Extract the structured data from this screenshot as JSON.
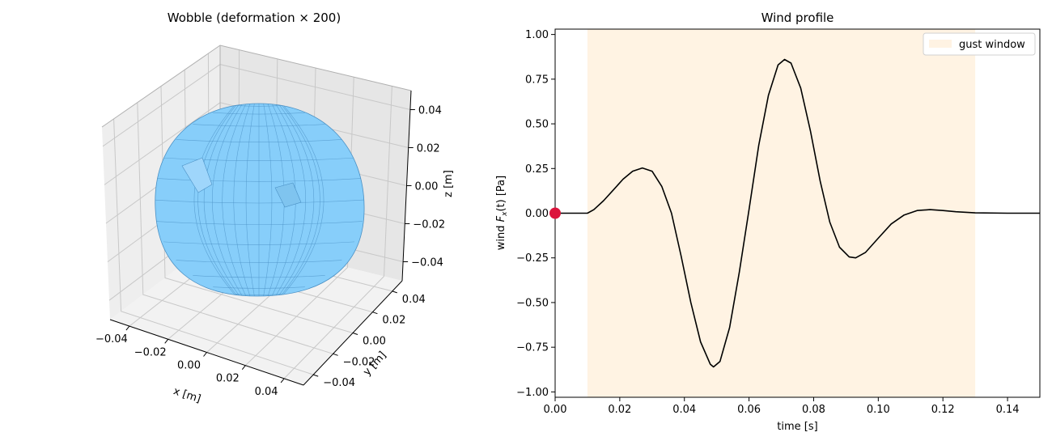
{
  "chart_data": [
    {
      "type": "surface3d",
      "title": "Wobble (deformation × 200)",
      "xlabel": "x [m]",
      "ylabel": "y [m]",
      "zlabel": "z [m]",
      "xticks": [
        "−0.04",
        "−0.02",
        "0.00",
        "0.02",
        "0.04"
      ],
      "yticks": [
        "−0.04",
        "−0.02",
        "0.00",
        "0.02",
        "0.04"
      ],
      "zticks": [
        "−0.04",
        "−0.02",
        "0.00",
        "0.02",
        "0.04"
      ],
      "xlim": [
        -0.05,
        0.05
      ],
      "ylim": [
        -0.05,
        0.05
      ],
      "zlim": [
        -0.05,
        0.05
      ],
      "surface_color": "#87cefa",
      "edge_color": "#4a90c4",
      "grid": true
    },
    {
      "type": "line",
      "title": "Wind profile",
      "xlabel": "time [s]",
      "ylabel_prefix": "wind ",
      "ylabel_symbol": "F",
      "ylabel_sub": "x",
      "ylabel_suffix": "(t) [Pa]",
      "xlim": [
        0.0,
        0.15
      ],
      "ylim": [
        -1.03,
        1.03
      ],
      "xticks": [
        0.0,
        0.02,
        0.04,
        0.06,
        0.08,
        0.1,
        0.12,
        0.14
      ],
      "xtick_labels": [
        "0.00",
        "0.02",
        "0.04",
        "0.06",
        "0.08",
        "0.10",
        "0.12",
        "0.14"
      ],
      "yticks": [
        -1.0,
        -0.75,
        -0.5,
        -0.25,
        0.0,
        0.25,
        0.5,
        0.75,
        1.0
      ],
      "ytick_labels": [
        "−1.00",
        "−0.75",
        "−0.50",
        "−0.25",
        "0.00",
        "0.25",
        "0.50",
        "0.75",
        "1.00"
      ],
      "gust_window": [
        0.01,
        0.13
      ],
      "legend": {
        "label": "gust window",
        "position": "upper-right"
      },
      "series": [
        {
          "color": "#000000",
          "points": [
            [
              0.0,
              0.0
            ],
            [
              0.01,
              0.0
            ],
            [
              0.012,
              0.02
            ],
            [
              0.015,
              0.07
            ],
            [
              0.018,
              0.13
            ],
            [
              0.021,
              0.19
            ],
            [
              0.024,
              0.235
            ],
            [
              0.027,
              0.253
            ],
            [
              0.03,
              0.235
            ],
            [
              0.033,
              0.15
            ],
            [
              0.036,
              0.0
            ],
            [
              0.039,
              -0.24
            ],
            [
              0.042,
              -0.5
            ],
            [
              0.045,
              -0.72
            ],
            [
              0.048,
              -0.845
            ],
            [
              0.049,
              -0.86
            ],
            [
              0.051,
              -0.83
            ],
            [
              0.054,
              -0.64
            ],
            [
              0.057,
              -0.33
            ],
            [
              0.06,
              0.02
            ],
            [
              0.063,
              0.38
            ],
            [
              0.066,
              0.66
            ],
            [
              0.069,
              0.83
            ],
            [
              0.071,
              0.86
            ],
            [
              0.073,
              0.84
            ],
            [
              0.076,
              0.7
            ],
            [
              0.079,
              0.46
            ],
            [
              0.082,
              0.18
            ],
            [
              0.085,
              -0.05
            ],
            [
              0.088,
              -0.19
            ],
            [
              0.091,
              -0.245
            ],
            [
              0.093,
              -0.25
            ],
            [
              0.096,
              -0.22
            ],
            [
              0.1,
              -0.14
            ],
            [
              0.104,
              -0.06
            ],
            [
              0.108,
              -0.01
            ],
            [
              0.112,
              0.015
            ],
            [
              0.116,
              0.02
            ],
            [
              0.12,
              0.015
            ],
            [
              0.124,
              0.008
            ],
            [
              0.13,
              0.002
            ],
            [
              0.14,
              0.0
            ],
            [
              0.15,
              0.0
            ]
          ]
        }
      ],
      "marker": {
        "x": 0.0,
        "y": 0.0,
        "color": "#dc143c"
      }
    }
  ]
}
